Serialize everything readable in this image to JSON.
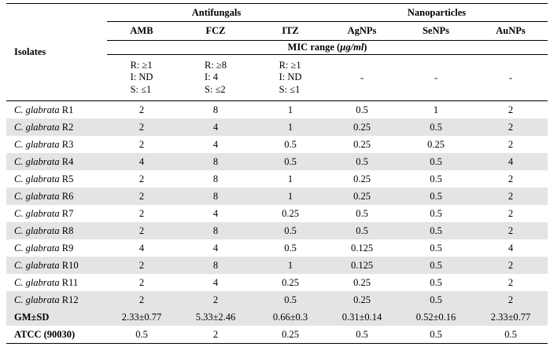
{
  "headers": {
    "isolates": "Isolates",
    "antifungals": "Antifungals",
    "nanoparticles": "Nanoparticles",
    "cols": [
      "AMB",
      "FCZ",
      "ITZ",
      "AgNPs",
      "SeNPs",
      "AuNPs"
    ],
    "mic_range_prefix": "MIC range (",
    "mic_range_unit": "µg/ml",
    "mic_range_suffix": ")"
  },
  "ranges": {
    "AMB": [
      "R: ≥1",
      "I: ND",
      "S: ≤1"
    ],
    "FCZ": [
      "R: ≥8",
      "I: 4",
      "S: ≤2"
    ],
    "ITZ": [
      "R: ≥1",
      "I: ND",
      "S: ≤1"
    ],
    "AgNPs": "-",
    "SeNPs": "-",
    "AuNPs": "-"
  },
  "rows": [
    {
      "species": "C. glabrata",
      "id": "R1",
      "values": [
        "2",
        "8",
        "1",
        "0.5",
        "1",
        "2"
      ]
    },
    {
      "species": "C. glabrata",
      "id": "R2",
      "values": [
        "2",
        "4",
        "1",
        "0.25",
        "0.5",
        "2"
      ]
    },
    {
      "species": "C. glabrata",
      "id": "R3",
      "values": [
        "2",
        "4",
        "0.5",
        "0.25",
        "0.25",
        "2"
      ]
    },
    {
      "species": "C. glabrata",
      "id": "R4",
      "values": [
        "4",
        "8",
        "0.5",
        "0.5",
        "0.5",
        "4"
      ]
    },
    {
      "species": "C. glabrata",
      "id": "R5",
      "values": [
        "2",
        "8",
        "1",
        "0.25",
        "0.5",
        "2"
      ]
    },
    {
      "species": "C. glabrata",
      "id": "R6",
      "values": [
        "2",
        "8",
        "1",
        "0.25",
        "0.5",
        "2"
      ]
    },
    {
      "species": "C. glabrata",
      "id": "R7",
      "values": [
        "2",
        "4",
        "0.25",
        "0.5",
        "0.5",
        "2"
      ]
    },
    {
      "species": "C. glabrata",
      "id": "R8",
      "values": [
        "2",
        "8",
        "0.5",
        "0.5",
        "0.5",
        "2"
      ]
    },
    {
      "species": "C. glabrata",
      "id": "R9",
      "values": [
        "4",
        "4",
        "0.5",
        "0.125",
        "0.5",
        "4"
      ]
    },
    {
      "species": "C. glabrata",
      "id": "R10",
      "values": [
        "2",
        "8",
        "1",
        "0.125",
        "0.5",
        "2"
      ]
    },
    {
      "species": "C. glabrata",
      "id": "R11",
      "values": [
        "2",
        "4",
        "0.25",
        "0.25",
        "0.5",
        "2"
      ]
    },
    {
      "species": "C. glabrata",
      "id": "R12",
      "values": [
        "2",
        "2",
        "0.5",
        "0.25",
        "0.5",
        "2"
      ]
    }
  ],
  "gm": {
    "label": "GM±SD",
    "values": [
      "2.33±0.77",
      "5.33±2.46",
      "0.66±0.3",
      "0.31±0.14",
      "0.52±0.16",
      "2.33±0.77"
    ]
  },
  "atcc": {
    "label": "ATCC (90030)",
    "values": [
      "0.5",
      "2",
      "0.25",
      "0.5",
      "0.5",
      "0.5"
    ]
  }
}
